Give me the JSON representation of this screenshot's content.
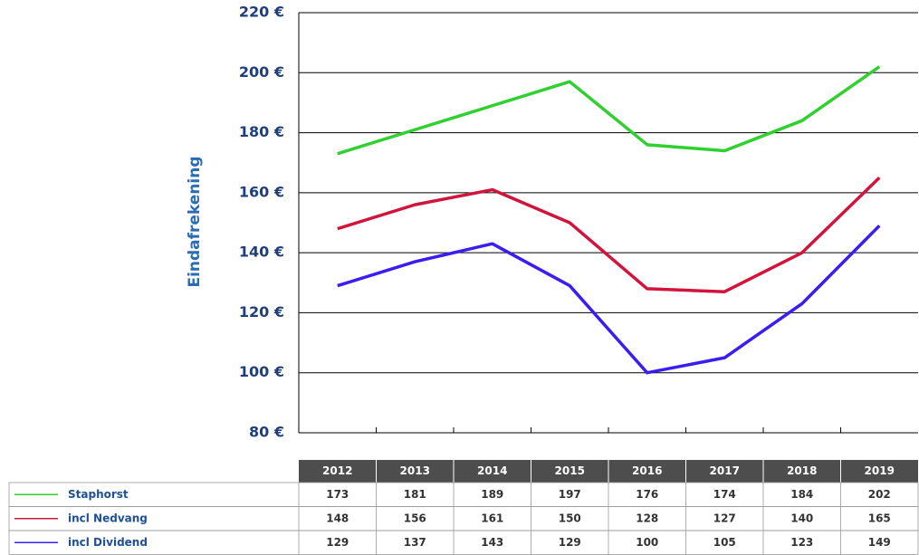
{
  "chart_data": {
    "type": "line",
    "y_label": "Eindafrekening",
    "categories": [
      "2012",
      "2013",
      "2014",
      "2015",
      "2016",
      "2017",
      "2018",
      "2019"
    ],
    "series": [
      {
        "name": "Staphorst",
        "color": "#2fd02f",
        "values": [
          173,
          181,
          189,
          197,
          176,
          174,
          184,
          202
        ]
      },
      {
        "name": "incl Nedvang",
        "color": "#d0143c",
        "values": [
          148,
          156,
          161,
          150,
          128,
          127,
          140,
          165
        ]
      },
      {
        "name": "incl Dividend",
        "color": "#3a1df0",
        "values": [
          129,
          137,
          143,
          129,
          100,
          105,
          123,
          149
        ]
      }
    ],
    "ylim": [
      80,
      220
    ],
    "yticks": [
      {
        "value": 80,
        "label": "80 €"
      },
      {
        "value": 100,
        "label": "100 €"
      },
      {
        "value": 120,
        "label": "120 €"
      },
      {
        "value": 140,
        "label": "140 €"
      },
      {
        "value": 160,
        "label": "160 €"
      },
      {
        "value": 180,
        "label": "180 €"
      },
      {
        "value": 200,
        "label": "200 €"
      },
      {
        "value": 220,
        "label": "220 €"
      }
    ],
    "grid": true
  }
}
